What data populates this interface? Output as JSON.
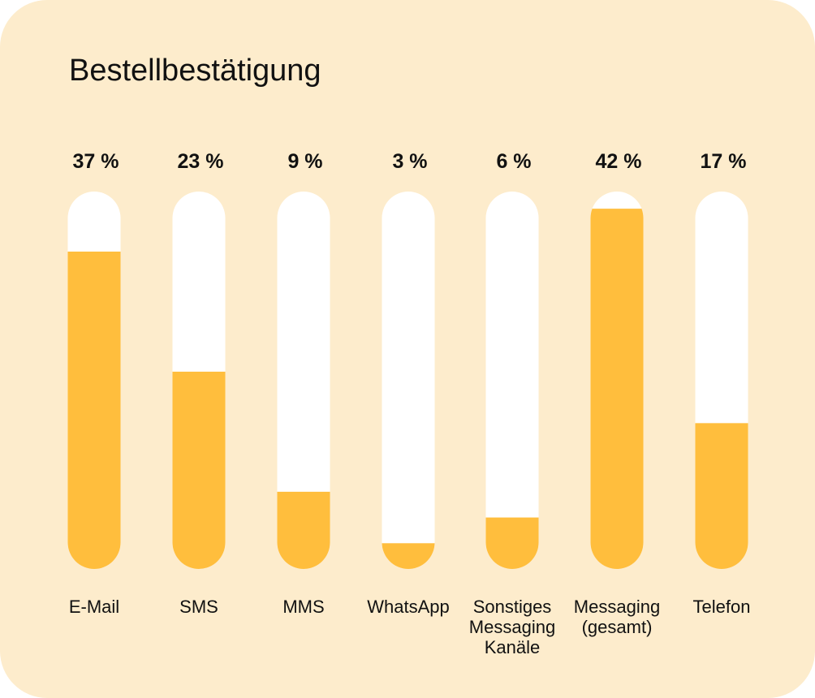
{
  "colors": {
    "background": "#FDECCC",
    "track": "#FFFFFF",
    "fill": "#FFBE3D",
    "text": "#111111"
  },
  "chart_data": {
    "type": "bar",
    "title": "Bestellbestätigung",
    "categories": [
      "E-Mail",
      "SMS",
      "MMS",
      "WhatsApp",
      "Sonstiges Messaging Kanäle",
      "Messaging (gesamt)",
      "Telefon"
    ],
    "category_lines": [
      [
        "E-Mail"
      ],
      [
        "SMS"
      ],
      [
        "MMS"
      ],
      [
        "WhatsApp"
      ],
      [
        "Sonstiges",
        "Messaging",
        "Kanäle"
      ],
      [
        "Messaging",
        "(gesamt)"
      ],
      [
        "Telefon"
      ]
    ],
    "values": [
      37,
      23,
      9,
      3,
      6,
      42,
      17
    ],
    "value_labels": [
      "37 %",
      "23 %",
      "9 %",
      "3 %",
      "6 %",
      "42 %",
      "17 %"
    ],
    "ylim": [
      0,
      44
    ],
    "grid": false,
    "legend": "none"
  }
}
